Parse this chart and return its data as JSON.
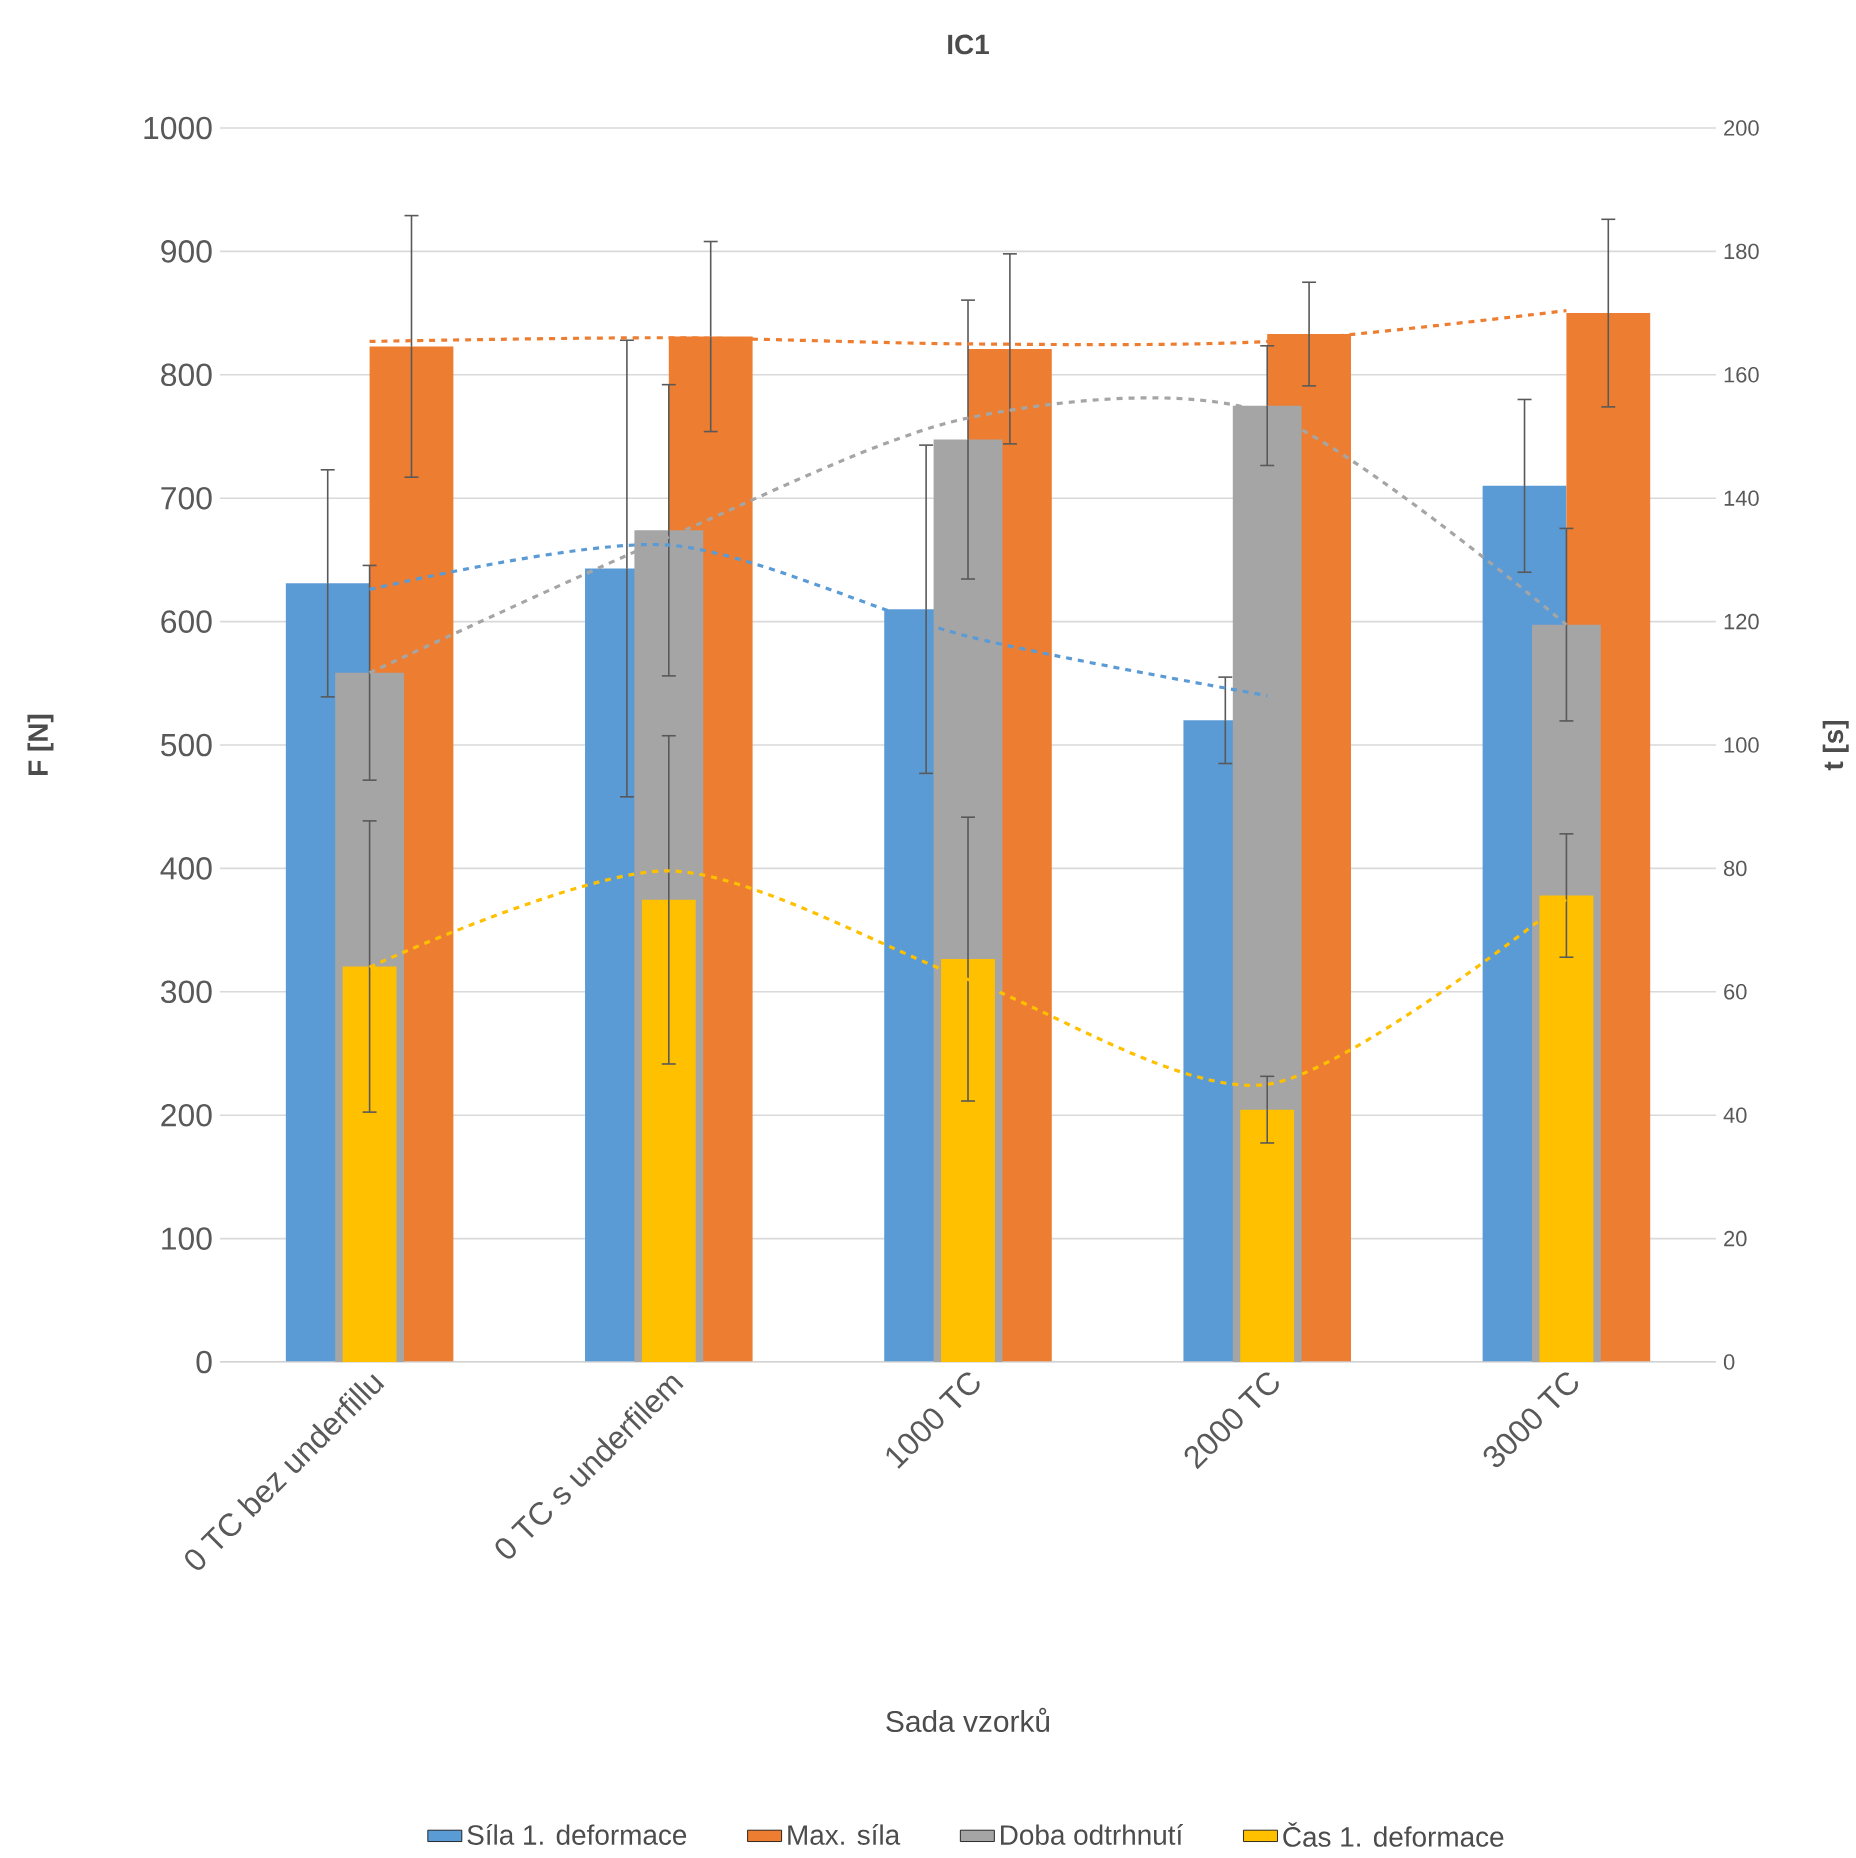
{
  "chart_data": {
    "type": "bar",
    "title": "IC1",
    "xlabel": "Sada vzorků",
    "ylabel": "F [N]",
    "y2label": "t [s]",
    "categories": [
      "0 TC bez underfillu",
      "0 TC s underfilem",
      "1000 TC",
      "2000 TC",
      "3000 TC"
    ],
    "series": [
      {
        "name": "Síla 1. deformace",
        "color": "#5b9bd5",
        "values": [
          631,
          643,
          610,
          520,
          710
        ],
        "errors": [
          92,
          185,
          133,
          35,
          70
        ]
      },
      {
        "name": "Max. síla",
        "color": "#ed7d31",
        "values": [
          823,
          831,
          821,
          833,
          850
        ],
        "errors": [
          106,
          77,
          77,
          42,
          76
        ]
      },
      {
        "name": "Doba odtrhnutí",
        "axis": "y2",
        "color": "#a5a5a5",
        "values": [
          111.7,
          134.8,
          149.5,
          155,
          119.5
        ],
        "errors": [
          17.4,
          23.6,
          22.6,
          9.7,
          15.6
        ]
      },
      {
        "name": "Čas 1. deformace",
        "axis": "y2",
        "color": "#ffc000",
        "values": [
          64.1,
          74.9,
          65.3,
          40.9,
          75.6
        ],
        "errors": [
          23.6,
          26.6,
          23,
          5.4,
          10
        ]
      },
      {
        "type": "line",
        "color": "#5b9bd5",
        "line_style": "dashed",
        "values": [
          626,
          662,
          588,
          540,
          null
        ]
      },
      {
        "type": "line",
        "color": "#ed7d31",
        "line_style": "dashed",
        "values": [
          827,
          830,
          825,
          827,
          852
        ]
      },
      {
        "type": "line",
        "axis": "y2",
        "color": "#a5a5a5",
        "line_style": "dashed",
        "values": [
          111.7,
          133.7,
          153,
          153.7,
          119.5
        ]
      },
      {
        "type": "line",
        "axis": "y2",
        "color": "#ffc000",
        "line_style": "dashed",
        "values": [
          64,
          79.6,
          62,
          45,
          75
        ]
      }
    ],
    "ylim": [
      0,
      1000
    ],
    "yticks": [
      0,
      100,
      200,
      300,
      400,
      500,
      600,
      700,
      800,
      900,
      1000
    ],
    "y2lim": [
      0,
      200
    ],
    "y2ticks": [
      0,
      20,
      40,
      60,
      80,
      100,
      120,
      140,
      160,
      180,
      200
    ],
    "grid": "y",
    "legend": "bottom"
  }
}
